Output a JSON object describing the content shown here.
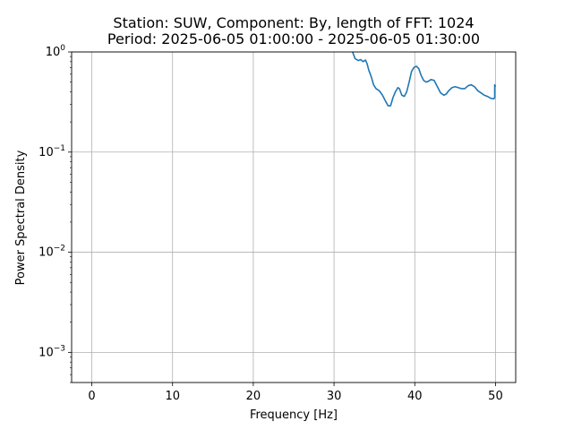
{
  "chart_data": {
    "type": "line",
    "title_line1": "Station: SUW, Component: By, length of FFT: 1024",
    "title_line2": "Period: 2025-06-05 01:00:00 - 2025-06-05 01:30:00",
    "xlabel": "Frequency [Hz]",
    "ylabel": "Power Spectral Density",
    "xlim": [
      -2.5,
      52.5
    ],
    "ylim": [
      0.0005,
      1
    ],
    "yscale": "log",
    "grid": true,
    "x_ticks": [
      {
        "value": 0,
        "label": "0"
      },
      {
        "value": 10,
        "label": "10"
      },
      {
        "value": 20,
        "label": "20"
      },
      {
        "value": 30,
        "label": "30"
      },
      {
        "value": 40,
        "label": "40"
      },
      {
        "value": 50,
        "label": "50"
      }
    ],
    "y_ticks": [
      {
        "value": 1,
        "base": "10",
        "exp": "0"
      },
      {
        "value": 0.1,
        "base": "10",
        "exp": "−1"
      },
      {
        "value": 0.01,
        "base": "10",
        "exp": "−2"
      },
      {
        "value": 0.001,
        "base": "10",
        "exp": "−3"
      }
    ],
    "series": [
      {
        "color": "#1f77b4",
        "x": [
          32.3,
          32.6,
          33.0,
          33.3,
          33.6,
          33.9,
          34.1,
          34.3,
          34.6,
          34.9,
          35.2,
          35.6,
          36.0,
          36.4,
          36.7,
          37.0,
          37.3,
          37.6,
          37.9,
          38.1,
          38.4,
          38.7,
          39.0,
          39.3,
          39.6,
          39.9,
          40.2,
          40.5,
          40.8,
          41.1,
          41.4,
          41.7,
          42.0,
          42.4,
          42.8,
          43.2,
          43.6,
          43.9,
          44.2,
          44.6,
          45.0,
          45.4,
          45.8,
          46.2,
          46.6,
          47.0,
          47.4,
          47.8,
          48.2,
          48.6,
          49.0,
          49.4,
          49.8,
          49.9,
          49.9,
          50.0
        ],
        "y": [
          1.0,
          0.86,
          0.82,
          0.84,
          0.8,
          0.83,
          0.76,
          0.66,
          0.57,
          0.47,
          0.43,
          0.41,
          0.37,
          0.32,
          0.29,
          0.29,
          0.35,
          0.4,
          0.44,
          0.43,
          0.37,
          0.36,
          0.4,
          0.5,
          0.64,
          0.7,
          0.72,
          0.68,
          0.58,
          0.52,
          0.5,
          0.51,
          0.53,
          0.52,
          0.45,
          0.39,
          0.37,
          0.38,
          0.41,
          0.44,
          0.45,
          0.44,
          0.43,
          0.43,
          0.46,
          0.47,
          0.45,
          0.41,
          0.39,
          0.37,
          0.36,
          0.345,
          0.34,
          0.35,
          0.47,
          0.45
        ]
      }
    ]
  }
}
